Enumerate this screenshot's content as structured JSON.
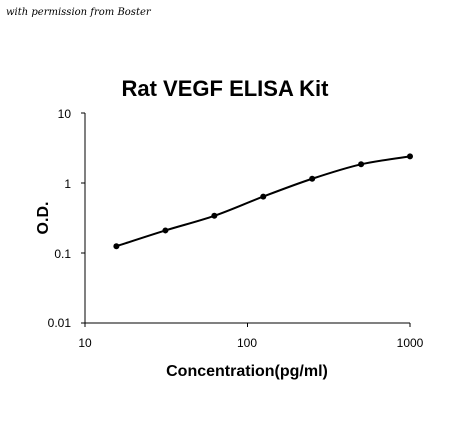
{
  "watermark": "with permission from Boster",
  "chart_data": {
    "type": "line",
    "title": "Rat VEGF ELISA Kit",
    "xlabel": "Concentration(pg/ml)",
    "ylabel": "O.D.",
    "xscale": "log",
    "yscale": "log",
    "xlim": [
      10,
      1000
    ],
    "ylim": [
      0.01,
      10
    ],
    "xticks": [
      "10",
      "100",
      "1000"
    ],
    "yticks": [
      "10",
      "1",
      "0.1",
      "0.01"
    ],
    "grid": false,
    "legend": "none",
    "line_color": "#000000",
    "series": [
      {
        "x": [
          15.6,
          31.25,
          62.5,
          125,
          250,
          500,
          1000
        ],
        "y": [
          0.125,
          0.21,
          0.34,
          0.64,
          1.15,
          1.85,
          2.4
        ]
      }
    ]
  }
}
